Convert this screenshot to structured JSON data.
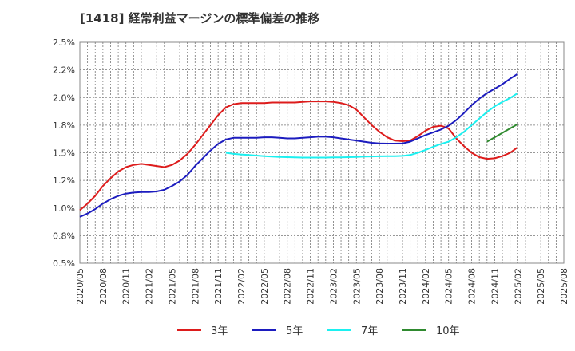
{
  "chart_data": {
    "type": "line",
    "title": "[1418]  経常利益マージンの標準偏差の推移",
    "xlabel": "",
    "ylabel": "",
    "ylim": [
      0.5,
      2.5
    ],
    "y_ticks": [
      "0.5%",
      "0.8%",
      "1.0%",
      "1.2%",
      "1.5%",
      "1.8%",
      "2.0%",
      "2.2%",
      "2.5%"
    ],
    "x_ticks": [
      "2020/05",
      "2020/08",
      "2020/11",
      "2021/02",
      "2021/05",
      "2021/08",
      "2021/11",
      "2022/02",
      "2022/05",
      "2022/08",
      "2022/11",
      "2023/02",
      "2023/05",
      "2023/08",
      "2023/11",
      "2024/02",
      "2024/05",
      "2024/08",
      "2024/11",
      "2025/02",
      "2025/05",
      "2025/08"
    ],
    "grid": true,
    "legend_position": "bottom",
    "series": [
      {
        "name": "3年",
        "color": "#dd1c1c",
        "values": [
          0.98,
          1.04,
          1.11,
          1.2,
          1.27,
          1.33,
          1.37,
          1.39,
          1.4,
          1.39,
          1.38,
          1.37,
          1.39,
          1.43,
          1.49,
          1.57,
          1.66,
          1.75,
          1.84,
          1.91,
          1.94,
          1.95,
          1.95,
          1.95,
          1.95,
          1.955,
          1.955,
          1.955,
          1.955,
          1.96,
          1.965,
          1.965,
          1.965,
          1.96,
          1.95,
          1.93,
          1.89,
          1.82,
          1.75,
          1.69,
          1.64,
          1.61,
          1.605,
          1.61,
          1.65,
          1.7,
          1.735,
          1.745,
          1.72,
          1.63,
          1.56,
          1.5,
          1.46,
          1.445,
          1.45,
          1.47,
          1.5,
          1.55
        ]
      },
      {
        "name": "5年",
        "color": "#1c1cbf",
        "values": [
          0.92,
          0.95,
          0.99,
          1.04,
          1.08,
          1.11,
          1.13,
          1.14,
          1.145,
          1.145,
          1.15,
          1.165,
          1.2,
          1.24,
          1.3,
          1.38,
          1.45,
          1.52,
          1.58,
          1.62,
          1.635,
          1.635,
          1.635,
          1.635,
          1.64,
          1.64,
          1.635,
          1.63,
          1.63,
          1.635,
          1.64,
          1.645,
          1.645,
          1.64,
          1.63,
          1.62,
          1.61,
          1.6,
          1.59,
          1.585,
          1.583,
          1.583,
          1.585,
          1.6,
          1.63,
          1.66,
          1.685,
          1.71,
          1.745,
          1.795,
          1.86,
          1.93,
          1.99,
          2.04,
          2.08,
          2.12,
          2.17,
          2.215
        ]
      },
      {
        "name": "7年",
        "color": "#1cf0f0",
        "start_index": 19,
        "values": [
          1.5,
          1.49,
          1.485,
          1.48,
          1.475,
          1.47,
          1.465,
          1.462,
          1.46,
          1.458,
          1.457,
          1.457,
          1.457,
          1.457,
          1.458,
          1.459,
          1.46,
          1.462,
          1.465,
          1.467,
          1.468,
          1.469,
          1.47,
          1.472,
          1.48,
          1.5,
          1.525,
          1.555,
          1.58,
          1.6,
          1.64,
          1.69,
          1.75,
          1.81,
          1.87,
          1.92,
          1.96,
          1.995,
          2.04
        ]
      },
      {
        "name": "10年",
        "color": "#2f8a2f",
        "start_index": 53,
        "values": [
          1.6,
          1.64,
          1.68,
          1.72,
          1.76
        ]
      }
    ]
  }
}
